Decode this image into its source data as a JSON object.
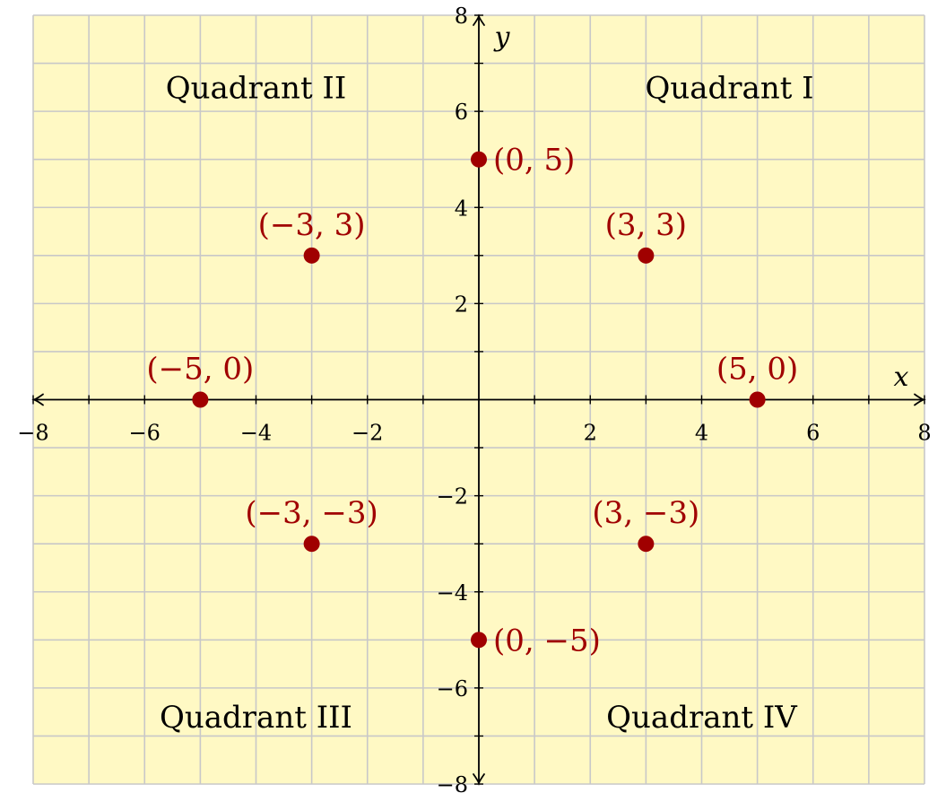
{
  "colors": {
    "background": "#fff9c4",
    "grid": "#c8c8c8",
    "axis": "#000000",
    "point": "#a00000"
  },
  "chart_data": {
    "type": "scatter",
    "title": "",
    "xlabel": "x",
    "ylabel": "y",
    "xlim": [
      -8,
      8
    ],
    "ylim": [
      -8,
      8
    ],
    "grid": true,
    "grid_step": 1,
    "x_ticks": [
      {
        "value": -8,
        "label": "−8"
      },
      {
        "value": -6,
        "label": "−6"
      },
      {
        "value": -4,
        "label": "−4"
      },
      {
        "value": -2,
        "label": "−2"
      },
      {
        "value": 2,
        "label": "2"
      },
      {
        "value": 4,
        "label": "4"
      },
      {
        "value": 6,
        "label": "6"
      },
      {
        "value": 8,
        "label": "8"
      }
    ],
    "y_ticks": [
      {
        "value": 8,
        "label": "8"
      },
      {
        "value": 6,
        "label": "6"
      },
      {
        "value": 4,
        "label": "4"
      },
      {
        "value": 2,
        "label": "2"
      },
      {
        "value": -2,
        "label": "−2"
      },
      {
        "value": -4,
        "label": "−4"
      },
      {
        "value": -6,
        "label": "−6"
      },
      {
        "value": -8,
        "label": "−8"
      }
    ],
    "points": [
      {
        "x": 0,
        "y": 5,
        "label": "(0, 5)",
        "label_pos": "right"
      },
      {
        "x": -3,
        "y": 3,
        "label": "(−3, 3)",
        "label_pos": "above"
      },
      {
        "x": 3,
        "y": 3,
        "label": "(3, 3)",
        "label_pos": "above"
      },
      {
        "x": -5,
        "y": 0,
        "label": "(−5, 0)",
        "label_pos": "above"
      },
      {
        "x": 5,
        "y": 0,
        "label": "(5, 0)",
        "label_pos": "above"
      },
      {
        "x": -3,
        "y": -3,
        "label": "(−3, −3)",
        "label_pos": "above"
      },
      {
        "x": 3,
        "y": -3,
        "label": "(3, −3)",
        "label_pos": "above"
      },
      {
        "x": 0,
        "y": -5,
        "label": "(0, −5)",
        "label_pos": "right"
      }
    ],
    "annotations": [
      {
        "text": "Quadrant I",
        "x": 4.5,
        "y": 6.5
      },
      {
        "text": "Quadrant II",
        "x": -4,
        "y": 6.5
      },
      {
        "text": "Quadrant III",
        "x": -4,
        "y": -6.6
      },
      {
        "text": "Quadrant IV",
        "x": 4,
        "y": -6.6
      }
    ]
  }
}
